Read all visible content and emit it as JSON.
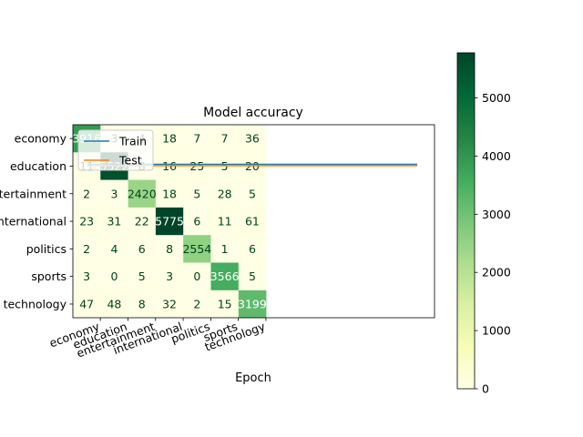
{
  "chart_data": {
    "type": "heatmap",
    "title": "Model accuracy",
    "xlabel": "Epoch",
    "ylabel": "",
    "categories": [
      "economy",
      "education",
      "entertainment",
      "international",
      "politics",
      "sports",
      "technology"
    ],
    "matrix": [
      [
        3916,
        3,
        4,
        18,
        7,
        7,
        36
      ],
      [
        11,
        5522,
        8,
        16,
        25,
        5,
        20
      ],
      [
        2,
        3,
        2420,
        18,
        5,
        28,
        5
      ],
      [
        23,
        31,
        22,
        5775,
        6,
        11,
        61
      ],
      [
        2,
        4,
        6,
        8,
        2554,
        1,
        6
      ],
      [
        3,
        0,
        5,
        3,
        0,
        3566,
        5
      ],
      [
        47,
        48,
        8,
        32,
        2,
        15,
        3199
      ]
    ],
    "colormap": "YlGn",
    "colorbar": {
      "ticks": [
        0,
        1000,
        2000,
        3000,
        4000,
        5000
      ],
      "range": [
        0,
        5775
      ]
    },
    "legend": {
      "placement": "upper-left",
      "entries": [
        {
          "name": "Train",
          "color": "#1f77b4"
        },
        {
          "name": "Test",
          "color": "#ff7f0e"
        }
      ]
    },
    "lines": [
      {
        "name": "Train",
        "color": "#1f77b4",
        "y": 0.97
      },
      {
        "name": "Test",
        "color": "#ff7f0e",
        "y": 0.92
      }
    ]
  }
}
